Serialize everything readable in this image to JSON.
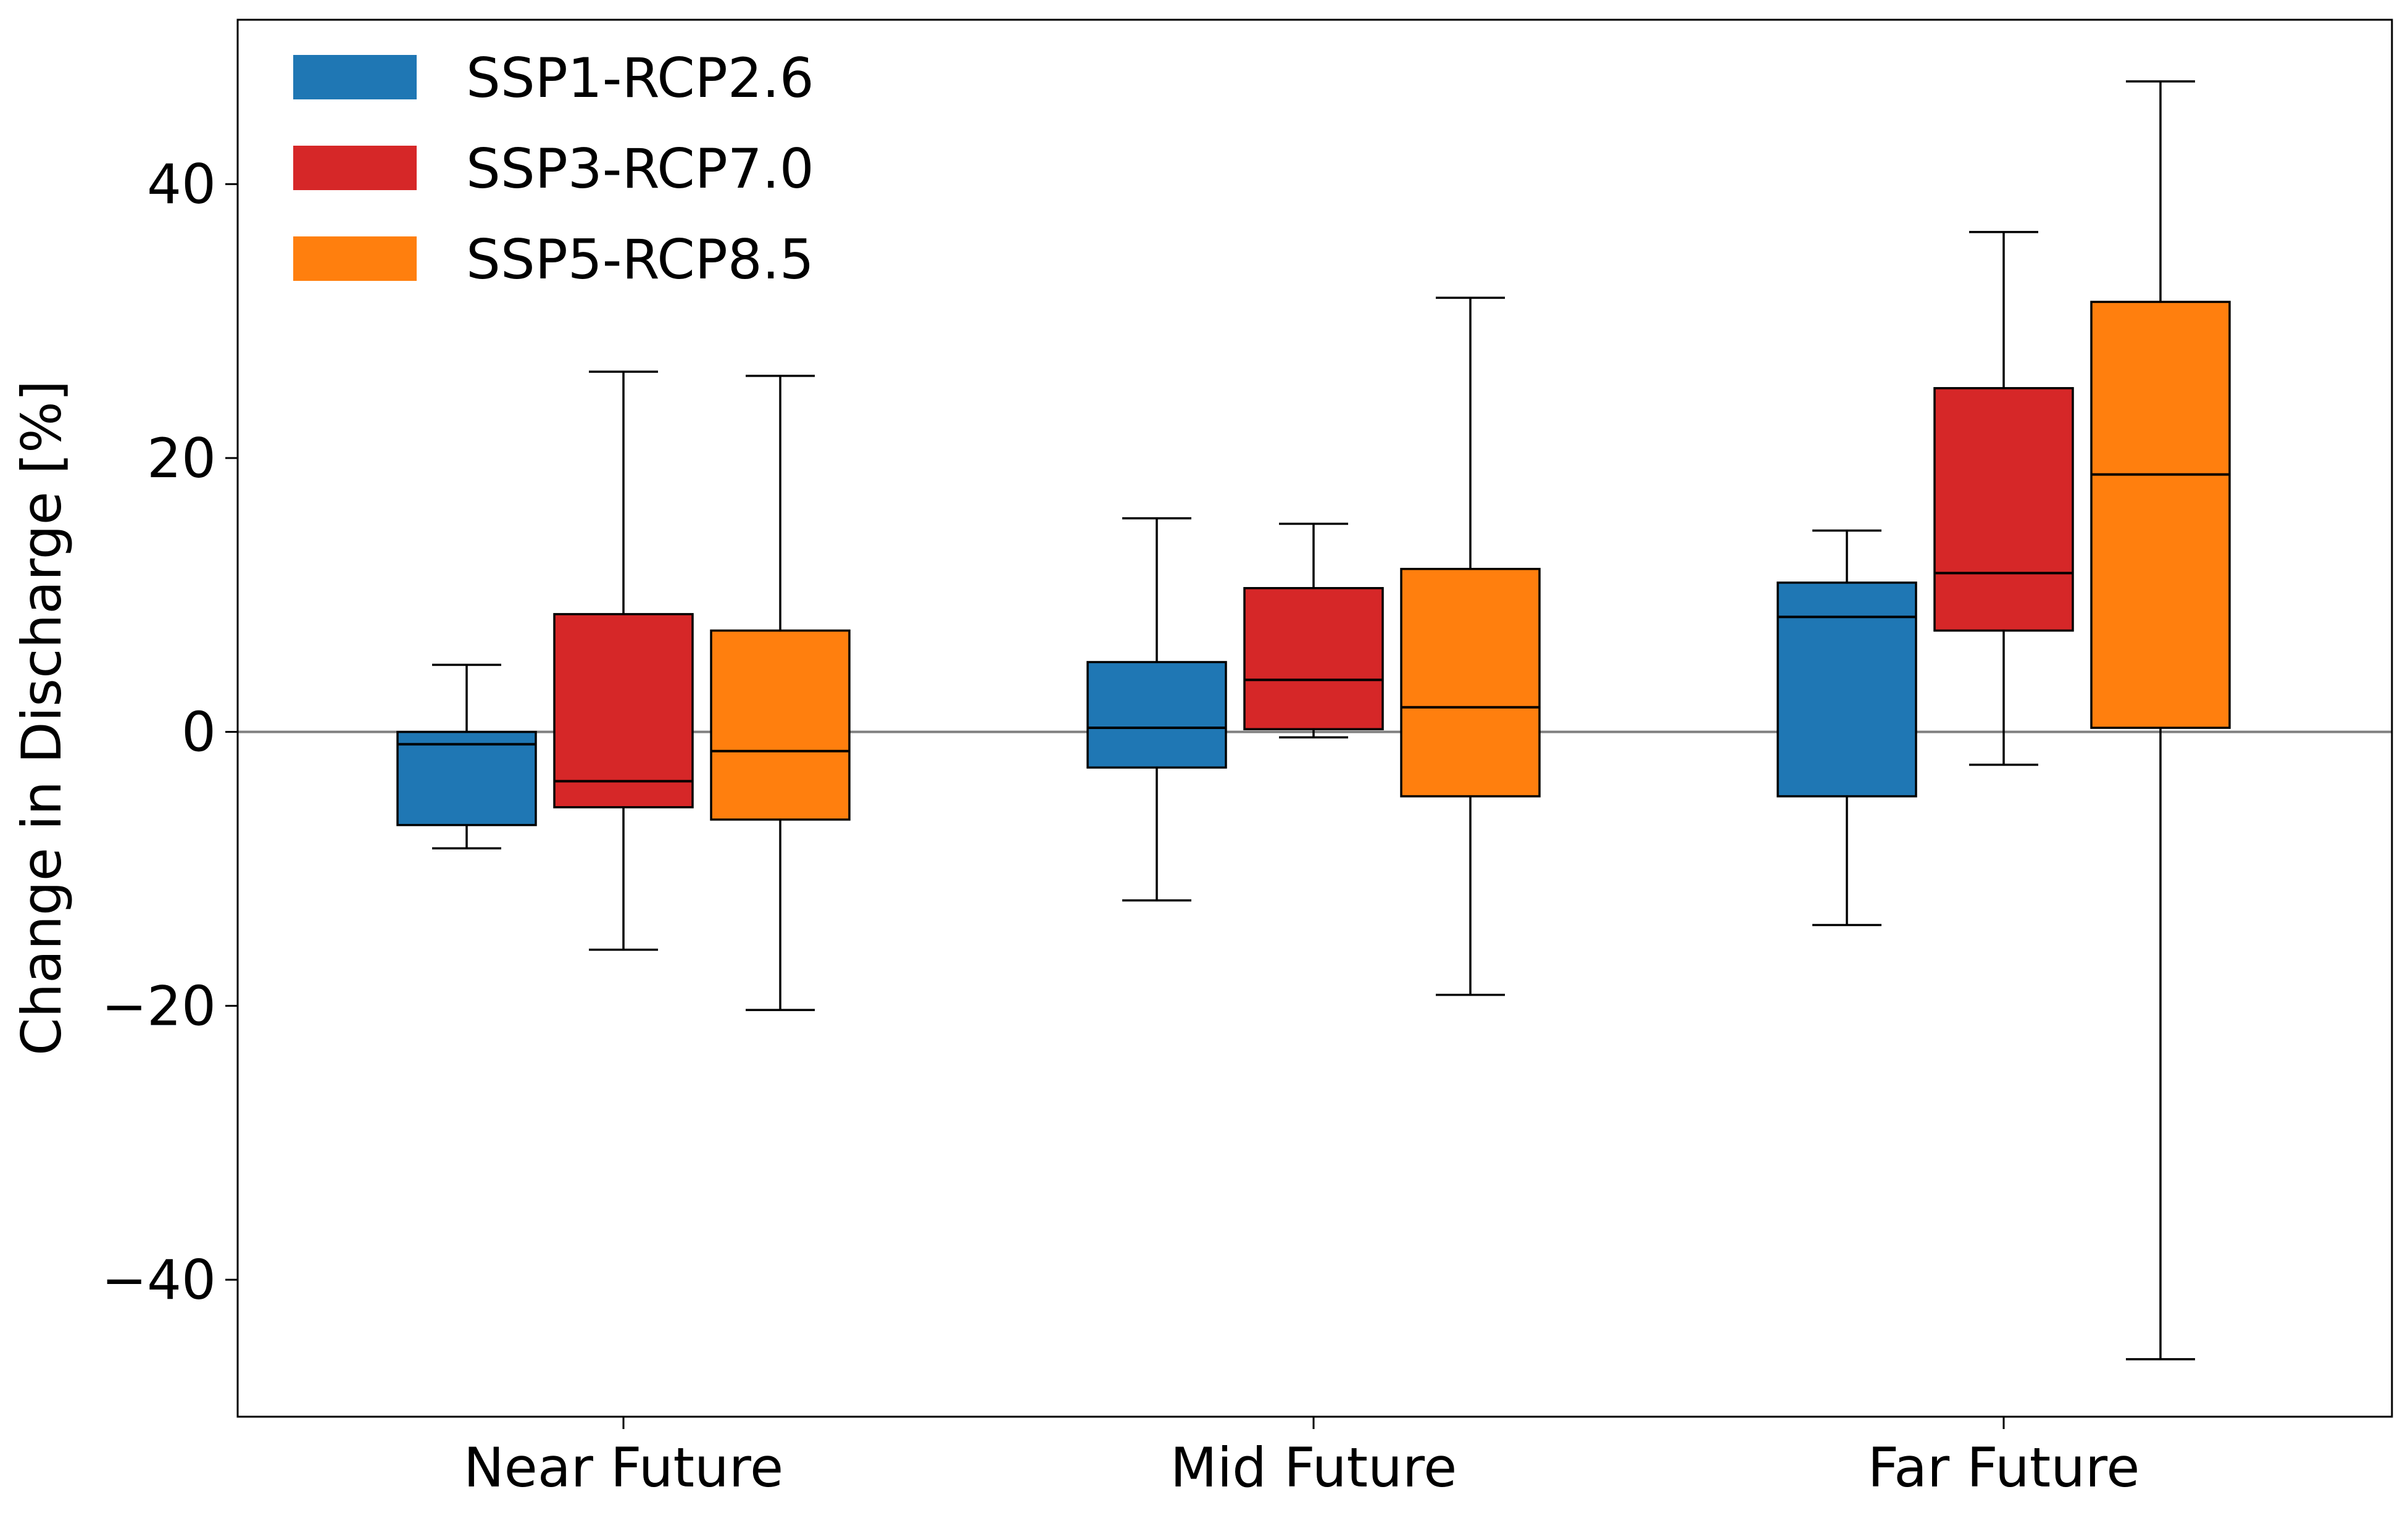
{
  "chart_data": {
    "type": "box",
    "title": "",
    "xlabel": "",
    "ylabel": "Change in Discharge [%]",
    "categories": [
      "Near Future",
      "Mid Future",
      "Far Future"
    ],
    "ylim": [
      -50,
      52
    ],
    "yticks": [
      -40,
      -20,
      0,
      20,
      40
    ],
    "ytick_labels": [
      "−40",
      "−20",
      "0",
      "20",
      "40"
    ],
    "reference_line": 0,
    "legend_position": "upper-left",
    "series": [
      {
        "name": "SSP1-RCP2.6",
        "color": "#1f77b4",
        "boxes": [
          {
            "whisker_low": -8.5,
            "q1": -6.8,
            "median": -0.9,
            "q3": 0.0,
            "whisker_high": 4.9
          },
          {
            "whisker_low": -12.3,
            "q1": -2.6,
            "median": 0.3,
            "q3": 5.1,
            "whisker_high": 15.6
          },
          {
            "whisker_low": -14.1,
            "q1": -4.7,
            "median": 8.4,
            "q3": 10.9,
            "whisker_high": 14.7
          }
        ]
      },
      {
        "name": "SSP3-RCP7.0",
        "color": "#d62728",
        "boxes": [
          {
            "whisker_low": -15.9,
            "q1": -5.5,
            "median": -3.6,
            "q3": 8.6,
            "whisker_high": 26.3
          },
          {
            "whisker_low": -0.4,
            "q1": 0.2,
            "median": 3.8,
            "q3": 10.5,
            "whisker_high": 15.2
          },
          {
            "whisker_low": -2.4,
            "q1": 7.4,
            "median": 11.6,
            "q3": 25.1,
            "whisker_high": 36.5
          }
        ]
      },
      {
        "name": "SSP5-RCP8.5",
        "color": "#ff7f0e",
        "boxes": [
          {
            "whisker_low": -20.3,
            "q1": -6.4,
            "median": -1.4,
            "q3": 7.4,
            "whisker_high": 26.0
          },
          {
            "whisker_low": -19.2,
            "q1": -4.7,
            "median": 1.8,
            "q3": 11.9,
            "whisker_high": 31.7
          },
          {
            "whisker_low": -45.8,
            "q1": 0.3,
            "median": 18.8,
            "q3": 31.4,
            "whisker_high": 47.5
          }
        ]
      }
    ]
  }
}
